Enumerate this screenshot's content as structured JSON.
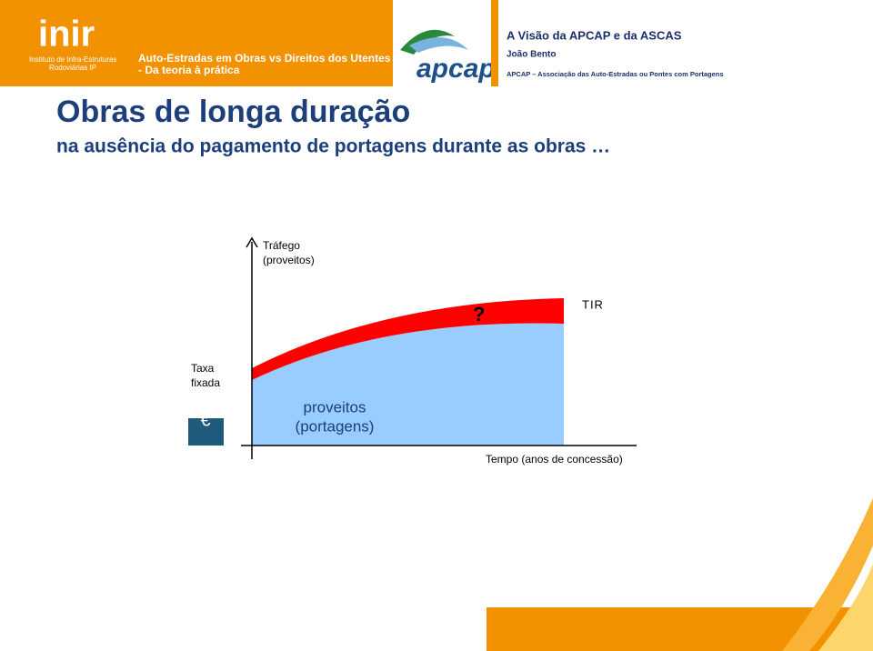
{
  "header": {
    "logo": "inir",
    "institute": [
      "Instituto de Infra-Estruturas",
      "Rodoviárias IP"
    ],
    "banner": [
      "Auto-Estradas em Obras vs Direitos dos Utentes",
      "- Da teoria à prática"
    ],
    "partner_logo": "apcap",
    "event": "A Visão da APCAP e da ASCAS",
    "speaker": "João Bento",
    "organization": "APCAP – Associação das Auto-Estradas ou Pontes com Portagens"
  },
  "slide": {
    "title": "Obras de longa duração",
    "subtitle": "na ausência do pagamento de portagens durante as obras …"
  },
  "diagram": {
    "y_axis_label": [
      "Tráfego",
      "(proveitos)"
    ],
    "question": "?",
    "tir": "TIR",
    "fixed_rate": [
      "Taxa",
      "fixada"
    ],
    "currency": "€",
    "area_label": [
      "proveitos",
      "(portagens)"
    ],
    "x_axis_label": "Tempo (anos de concessão)"
  }
}
